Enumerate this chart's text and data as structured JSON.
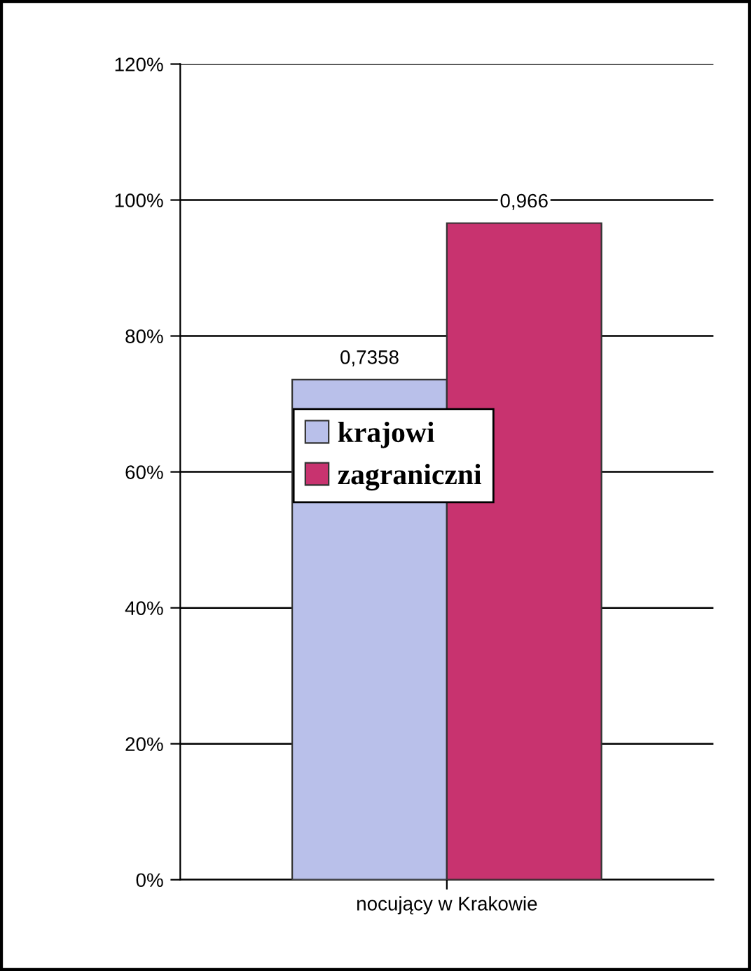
{
  "chart_data": {
    "type": "bar",
    "categories": [
      "nocujący w Krakowie"
    ],
    "series": [
      {
        "name": "krajowi",
        "color": "#b9c0ea",
        "values": [
          0.7358
        ],
        "value_labels": [
          "0,7358"
        ]
      },
      {
        "name": "zagraniczni",
        "color": "#c8336f",
        "values": [
          0.966
        ],
        "value_labels": [
          "0,966"
        ]
      }
    ],
    "ylim": [
      0,
      1.2
    ],
    "yticks": [
      {
        "value": 0,
        "label": "0%"
      },
      {
        "value": 0.2,
        "label": "20%"
      },
      {
        "value": 0.4,
        "label": "40%"
      },
      {
        "value": 0.6,
        "label": "60%"
      },
      {
        "value": 0.8,
        "label": "80%"
      },
      {
        "value": 1.0,
        "label": "100%"
      },
      {
        "value": 1.2,
        "label": "120%"
      }
    ],
    "grid": "y",
    "legend": "center"
  }
}
